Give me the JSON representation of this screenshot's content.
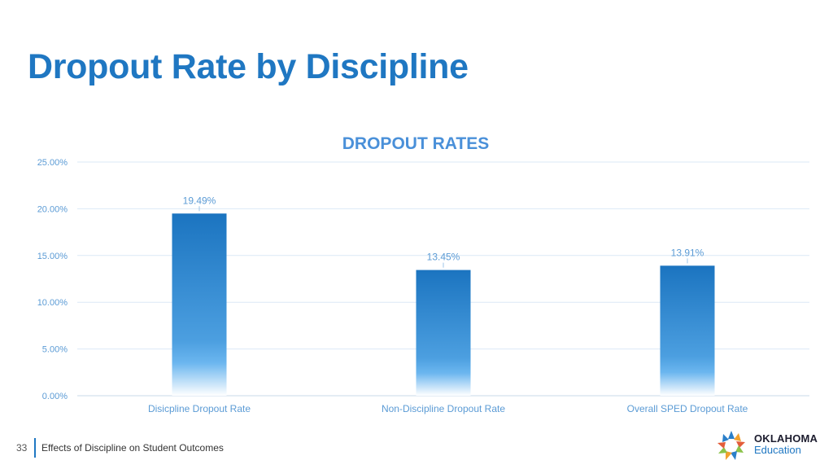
{
  "slide": {
    "title": "Dropout Rate by Discipline",
    "page_number": "33",
    "footer_text": "Effects of Discipline on Student Outcomes"
  },
  "logo": {
    "line1": "OKLAHOMA",
    "line2": "Education",
    "mark_icon": "oklahoma-star-mark-icon"
  },
  "colors": {
    "title": "#1f77c2",
    "chart_title": "#4a90d9",
    "bar_top": "#1b74c0",
    "bar_bottom": "#5aaee8",
    "axis_text": "#5b9bd5",
    "gridline": "#dbe9f6"
  },
  "chart_data": {
    "type": "bar",
    "title": "DROPOUT RATES",
    "categories": [
      "Disicpline Dropout Rate",
      "Non-Discipline Dropout Rate",
      "Overall SPED Dropout Rate"
    ],
    "values": [
      19.49,
      13.45,
      13.91
    ],
    "data_labels": [
      "19.49%",
      "13.45%",
      "13.91%"
    ],
    "ylim": [
      0,
      25
    ],
    "yticks": [
      0,
      5,
      10,
      15,
      20,
      25
    ],
    "ytick_labels": [
      "0.00%",
      "5.00%",
      "10.00%",
      "15.00%",
      "20.00%",
      "25.00%"
    ],
    "xlabel": "",
    "ylabel": "",
    "grid": true,
    "legend": "none"
  }
}
